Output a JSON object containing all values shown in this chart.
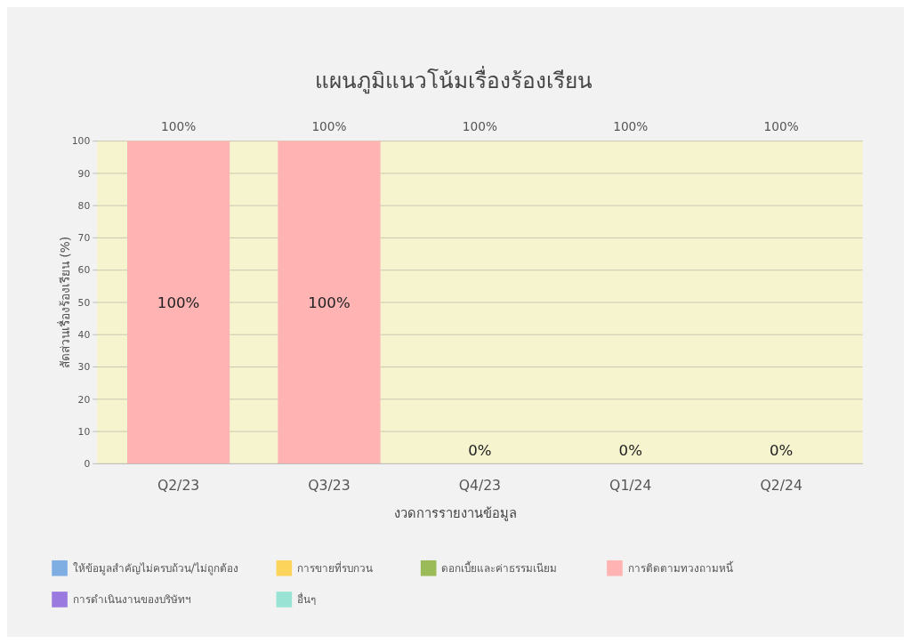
{
  "chart_data": {
    "type": "bar",
    "title": "แผนภูมิแนวโน้มเรื่องร้องเรียน",
    "xlabel": "งวดการรายงานข้อมูล",
    "ylabel": "สัดส่วนเรื่องร้องเรียน (%)",
    "categories": [
      "Q2/23",
      "Q3/23",
      "Q4/23",
      "Q1/24",
      "Q2/24"
    ],
    "stacked": true,
    "annotations": [
      "100%",
      "100%",
      "100%",
      "100%",
      "100%"
    ],
    "series": [
      {
        "name": "ให้ข้อมูลสำคัญไม่ครบถ้วน/ไม่ถูกต้อง",
        "color": "#7faee3",
        "values": [
          0,
          0,
          0,
          0,
          0
        ]
      },
      {
        "name": "การขายที่รบกวน",
        "color": "#fcd45c",
        "values": [
          0,
          0,
          0,
          0,
          0
        ]
      },
      {
        "name": "ดอกเบี้ยและค่าธรรมเนียม",
        "color": "#9bbb59",
        "values": [
          0,
          0,
          0,
          0,
          0
        ]
      },
      {
        "name": "การติดตามทวงถามหนี้",
        "color": "#ffb3b3",
        "values": [
          100,
          100,
          0,
          0,
          0
        ],
        "value_labels": [
          "100%",
          "100%",
          "0%",
          "0%",
          "0%"
        ]
      },
      {
        "name": "การดำเนินงานของบริษัทฯ",
        "color": "#9b7ae0",
        "values": [
          0,
          0,
          0,
          0,
          0
        ]
      },
      {
        "name": "อื่นๆ",
        "color": "#98e3d4",
        "values": [
          0,
          0,
          0,
          0,
          0
        ]
      }
    ],
    "ylim": [
      0,
      100
    ],
    "yticks": [
      0,
      10,
      20,
      30,
      40,
      50,
      60,
      70,
      80,
      90,
      100
    ],
    "grid": "y",
    "legend": "bottom"
  }
}
